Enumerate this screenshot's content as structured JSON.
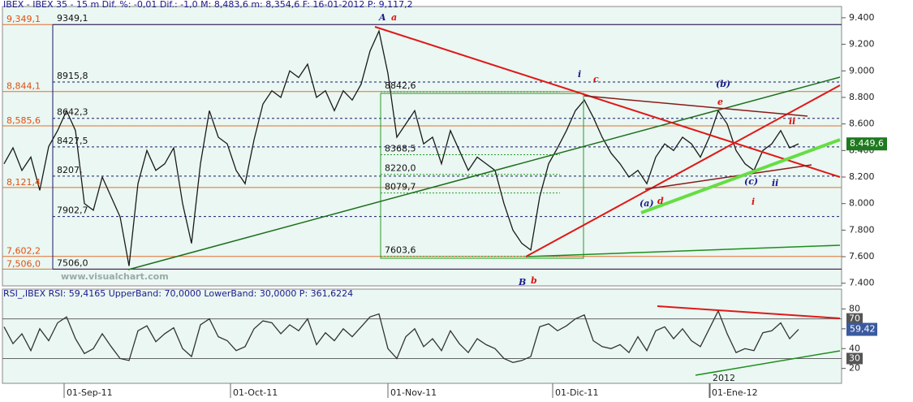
{
  "header": "IBEX - IBEX 35 -  15 m Dif. %: -0,01 Dif.: -1,0 M: 8,483,6 m: 8,354,6 F: 16-01-2012 P: 9,117,2",
  "watermark": "www.visualchart.com",
  "chart_data": [
    {
      "type": "line",
      "color": "#1a1a1a",
      "values": [
        8300,
        8420,
        8250,
        8350,
        8100,
        8430,
        8550,
        8700,
        8550,
        8000,
        7950,
        8200,
        8050,
        7900,
        7530,
        8150,
        8400,
        8250,
        8300,
        8420,
        8000,
        7700,
        8300,
        8700,
        8500,
        8450,
        8250,
        8150,
        8480,
        8750,
        8850,
        8800,
        9000,
        8950,
        9050,
        8800,
        8850,
        8700,
        8850,
        8780,
        8900,
        9150,
        9300,
        8980,
        8500,
        8600,
        8700,
        8450,
        8500,
        8300,
        8550,
        8400,
        8250,
        8350,
        8300,
        8250,
        8000,
        7800,
        7700,
        7650,
        8050,
        8300,
        8420,
        8550,
        8700,
        8780,
        8650,
        8500,
        8380,
        8300,
        8200,
        8250,
        8150,
        8350,
        8450,
        8400,
        8500,
        8450,
        8350,
        8500,
        8700,
        8600,
        8400,
        8300,
        8250,
        8400,
        8450,
        8550,
        8420,
        8450
      ],
      "ylim": [
        7380,
        9485
      ],
      "yticks": [
        {
          "value": 7400,
          "label": "7.400"
        },
        {
          "value": 7600,
          "label": "7.600"
        },
        {
          "value": 7800,
          "label": "7.800"
        },
        {
          "value": 8000,
          "label": "8.000"
        },
        {
          "value": 8200,
          "label": "8.200"
        },
        {
          "value": 8400,
          "label": "8.400"
        },
        {
          "value": 8600,
          "label": "8.600"
        },
        {
          "value": 8800,
          "label": "8.800"
        },
        {
          "value": 9000,
          "label": "9.000"
        },
        {
          "value": 9200,
          "label": "9.200"
        },
        {
          "value": 9400,
          "label": "9.400"
        }
      ],
      "last_price": {
        "value": 8449.6,
        "label": "8.449,6"
      },
      "fib_levels": [
        {
          "value": 9349.1,
          "label": "9,349,1"
        },
        {
          "value": 8844.1,
          "label": "8,844,1"
        },
        {
          "value": 8585.6,
          "label": "8,585,6"
        },
        {
          "value": 8121.4,
          "label": "8,121,4"
        },
        {
          "value": 7602.2,
          "label": "7,602,2"
        },
        {
          "value": 7506.0,
          "label": "7,506,0"
        }
      ],
      "levels_left": [
        {
          "value": 9349.1,
          "label": "9349,1"
        },
        {
          "value": 8915.8,
          "label": "8915,8"
        },
        {
          "value": 8642.3,
          "label": "8642,3"
        },
        {
          "value": 8427.5,
          "label": "8427,5"
        },
        {
          "value": 8207,
          "label": "8207,"
        },
        {
          "value": 7902.7,
          "label": "7902,7"
        },
        {
          "value": 7506.0,
          "label": "7506,0"
        }
      ],
      "levels_mid": [
        {
          "value": 8842.6,
          "label": "8842,6"
        },
        {
          "value": 8368.5,
          "label": "8368,5"
        },
        {
          "value": 8220.0,
          "label": "8220,0"
        },
        {
          "value": 8079.7,
          "label": "8079,7"
        },
        {
          "value": 7603.6,
          "label": "7603,6"
        }
      ],
      "annotations": [
        {
          "text": "A",
          "color": "#1a1a8c"
        },
        {
          "text": "a",
          "color": "#dd1111"
        },
        {
          "text": "B",
          "color": "#1a1a8c"
        },
        {
          "text": "b",
          "color": "#dd1111"
        },
        {
          "text": "i",
          "color": "#1a1a8c"
        },
        {
          "text": "c",
          "color": "#dd1111"
        },
        {
          "text": "(b)",
          "color": "#1a1a8c"
        },
        {
          "text": "e",
          "color": "#dd1111"
        },
        {
          "text": "ii",
          "color": "#dd1111"
        },
        {
          "text": "(a)",
          "color": "#1a1a8c"
        },
        {
          "text": "d",
          "color": "#dd1111"
        },
        {
          "text": "(c)",
          "color": "#1a1a8c"
        },
        {
          "text": "ii",
          "color": "#1a1a8c"
        },
        {
          "text": "i",
          "color": "#dd1111"
        }
      ]
    },
    {
      "type": "line",
      "title": "RSI_,IBEX RSI: 59,4165 UpperBand: 70,0000 LowerBand: 30,0000 P: 361,6224",
      "color": "#333333",
      "values": [
        62,
        45,
        55,
        38,
        60,
        48,
        66,
        72,
        50,
        35,
        40,
        55,
        42,
        30,
        28,
        58,
        63,
        47,
        55,
        61,
        40,
        32,
        64,
        70,
        52,
        48,
        38,
        42,
        60,
        68,
        66,
        55,
        64,
        58,
        70,
        44,
        56,
        48,
        60,
        52,
        62,
        72,
        75,
        40,
        30,
        52,
        60,
        42,
        50,
        38,
        58,
        45,
        36,
        50,
        44,
        40,
        30,
        26,
        28,
        32,
        62,
        65,
        58,
        63,
        70,
        74,
        48,
        42,
        40,
        44,
        36,
        52,
        38,
        58,
        62,
        50,
        60,
        48,
        42,
        60,
        78,
        55,
        36,
        40,
        38,
        56,
        58,
        66,
        50,
        59.42
      ],
      "ylim": [
        5,
        100
      ],
      "yticks": [
        20,
        40,
        60,
        80
      ],
      "bands": [
        70,
        30
      ],
      "last_value": {
        "value": 59.42,
        "label": "59,42"
      }
    }
  ],
  "date_labels": [
    "01-Sep-11",
    "01-Oct-11",
    "01-Nov-11",
    "01-Dic-11",
    "2012",
    "01-Ene-12"
  ]
}
